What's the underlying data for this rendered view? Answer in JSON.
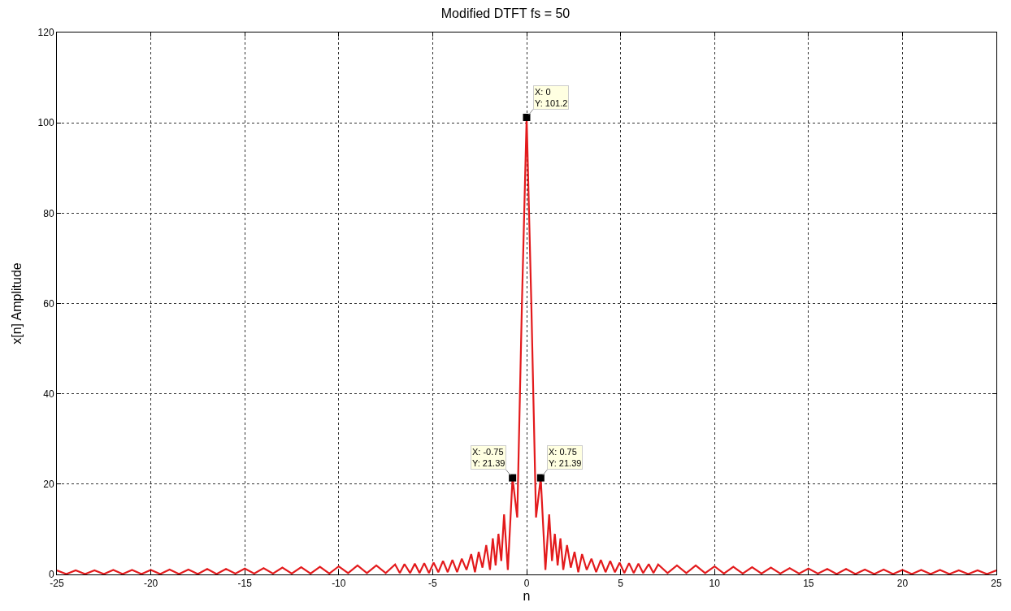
{
  "chart_data": {
    "type": "line",
    "title": "Modified DTFT fs = 50",
    "xlabel": "n",
    "ylabel": "x[n] Amplitude",
    "xlim": [
      -25,
      25
    ],
    "xticks": [
      -25,
      -20,
      -15,
      -10,
      -5,
      0,
      5,
      10,
      15,
      20,
      25
    ],
    "ylim": [
      0,
      120
    ],
    "yticks": [
      0,
      20,
      40,
      60,
      80,
      100,
      120
    ],
    "grid": true,
    "series": [
      {
        "color": "#e31a1c",
        "x": [
          -25,
          -24.5,
          -24,
          -23.5,
          -23,
          -22.5,
          -22,
          -21.5,
          -21,
          -20.5,
          -20,
          -19.5,
          -19,
          -18.5,
          -18,
          -17.5,
          -17,
          -16.5,
          -16,
          -15.5,
          -15,
          -14.5,
          -14,
          -13.5,
          -13,
          -12.5,
          -12,
          -11.5,
          -11,
          -10.5,
          -10,
          -9.5,
          -9,
          -8.5,
          -8,
          -7.5,
          -7,
          -6.75,
          -6.5,
          -6.2,
          -5.95,
          -5.7,
          -5.45,
          -5.2,
          -4.95,
          -4.7,
          -4.45,
          -4.2,
          -3.95,
          -3.7,
          -3.45,
          -3.2,
          -2.95,
          -2.75,
          -2.55,
          -2.35,
          -2.15,
          -1.95,
          -1.8,
          -1.65,
          -1.5,
          -1.35,
          -1.2,
          -1.0,
          -0.75,
          -0.5,
          -0.25,
          0,
          0.25,
          0.5,
          0.75,
          1.0,
          1.2,
          1.35,
          1.5,
          1.65,
          1.8,
          1.95,
          2.15,
          2.35,
          2.55,
          2.75,
          2.95,
          3.2,
          3.45,
          3.7,
          3.95,
          4.2,
          4.45,
          4.7,
          4.95,
          5.2,
          5.45,
          5.7,
          5.95,
          6.2,
          6.5,
          6.75,
          7,
          7.5,
          8,
          8.5,
          9,
          9.5,
          10,
          10.5,
          11,
          11.5,
          12,
          12.5,
          13,
          13.5,
          14,
          14.5,
          15,
          15.5,
          16,
          16.5,
          17,
          17.5,
          18,
          18.5,
          19,
          19.5,
          20,
          20.5,
          21,
          21.5,
          22,
          22.5,
          23,
          23.5,
          24,
          24.5,
          25
        ],
        "values": [
          0.9,
          0.1,
          0.9,
          0.1,
          0.9,
          0.1,
          1.0,
          0.1,
          1.0,
          0.1,
          1.0,
          0.1,
          1.1,
          0.1,
          1.1,
          0.1,
          1.2,
          0.1,
          1.2,
          0.2,
          1.3,
          0.2,
          1.4,
          0.2,
          1.5,
          0.2,
          1.6,
          0.2,
          1.7,
          0.2,
          1.8,
          0.3,
          2.0,
          0.3,
          2.0,
          0.3,
          2.2,
          0.3,
          2.3,
          0.3,
          2.4,
          0.3,
          2.5,
          0.3,
          2.6,
          0.5,
          3,
          0.5,
          3.2,
          0.5,
          3.5,
          1,
          4.5,
          0.5,
          5,
          1.5,
          6.5,
          1,
          8,
          2,
          9,
          3,
          13.3,
          1,
          21.39,
          12.6,
          60,
          101.2,
          60,
          12.6,
          21.39,
          1,
          13.3,
          3,
          9,
          2,
          8,
          1,
          6.5,
          1.5,
          5,
          0.5,
          4.5,
          1,
          3.5,
          0.5,
          3.2,
          0.5,
          3,
          0.5,
          2.6,
          0.3,
          2.5,
          0.3,
          2.4,
          0.3,
          2.3,
          0.3,
          2.2,
          0.3,
          2.0,
          0.3,
          2.0,
          0.3,
          1.8,
          0.2,
          1.7,
          0.2,
          1.6,
          0.2,
          1.5,
          0.2,
          1.4,
          0.2,
          1.3,
          0.2,
          1.2,
          0.1,
          1.2,
          0.1,
          1.1,
          0.1,
          1.1,
          0.1,
          1.0,
          0.1,
          1.0,
          0.1,
          1.0,
          0.1,
          0.9,
          0.1,
          0.9,
          0.1,
          0.9
        ]
      },
      {
        "color": "#000000",
        "type": "scatter",
        "marker": "square",
        "x": [
          -0.75,
          0,
          0.75
        ],
        "values": [
          21.39,
          101.2,
          21.39
        ]
      }
    ],
    "annotations": [
      {
        "text": "X: 0\nY: 101.2",
        "x": 0,
        "y": 101.2
      },
      {
        "text": "X: -0.75\nY: 21.39",
        "x": -0.75,
        "y": 21.39
      },
      {
        "text": "X: 0.75\nY: 21.39",
        "x": 0.75,
        "y": 21.39
      }
    ]
  }
}
